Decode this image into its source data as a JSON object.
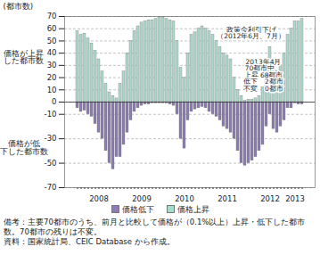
{
  "chart_data": {
    "type": "bar",
    "y_label": "(都市数)",
    "categories": [
      null,
      null,
      null,
      null,
      null,
      null,
      "2008",
      null,
      null,
      null,
      null,
      null,
      null,
      null,
      null,
      null,
      null,
      null,
      "2009",
      null,
      null,
      null,
      null,
      null,
      null,
      null,
      null,
      null,
      null,
      null,
      "2010",
      null,
      null,
      null,
      null,
      null,
      null,
      null,
      null,
      null,
      null,
      null,
      "2011",
      null,
      null,
      null,
      null,
      null,
      null,
      null,
      null,
      null,
      null,
      null,
      "2012",
      null,
      null,
      null,
      null,
      null,
      null,
      "2013",
      null,
      null
    ],
    "series": [
      {
        "name": "価格低下",
        "color": "#8c7bb8",
        "values": [
          -5,
          -8,
          -7,
          -10,
          -12,
          -18,
          -25,
          -30,
          -40,
          -50,
          -55,
          -45,
          -45,
          -35,
          -25,
          -15,
          -8,
          -5,
          -3,
          -2,
          -2,
          -1,
          -1,
          -1,
          -1,
          -1,
          -2,
          -3,
          -10,
          -30,
          -38,
          -15,
          -8,
          -6,
          -5,
          -4,
          -5,
          -8,
          -10,
          -12,
          -15,
          -20,
          -22,
          -25,
          -30,
          -40,
          -50,
          -52,
          -50,
          -48,
          -45,
          -40,
          -35,
          -20,
          -10,
          -22,
          -25,
          -20,
          -15,
          -5,
          -5,
          -1,
          -2,
          -2
        ]
      },
      {
        "name": "価格上昇",
        "color": "#a6dccd",
        "values": [
          58,
          55,
          56,
          52,
          48,
          42,
          35,
          25,
          15,
          8,
          5,
          3,
          15,
          25,
          40,
          50,
          58,
          62,
          65,
          66,
          67,
          67,
          68,
          69,
          69,
          68,
          67,
          66,
          50,
          28,
          20,
          40,
          55,
          57,
          60,
          62,
          60,
          58,
          55,
          50,
          45,
          40,
          38,
          35,
          20,
          10,
          5,
          1,
          2,
          2,
          3,
          5,
          12,
          25,
          45,
          30,
          25,
          30,
          40,
          55,
          60,
          66,
          66,
          68
        ]
      }
    ],
    "ylim": [
      -70,
      70
    ],
    "yticks": [
      70,
      60,
      50,
      40,
      30,
      20,
      10,
      0,
      -10,
      -30,
      -50,
      -70
    ],
    "grid": true,
    "legend": "bottom",
    "annotations": [
      "価格が上昇\nした都市数",
      "価格が低\n下した都市数",
      "政策金利引下げ\n（2012年6月、7月）",
      "2013年4月\n70都市中、\n上昇 68都市\n低下　2都市\n不変　0都市"
    ],
    "caption": [
      "備考：主要70都市のうち、前月と比較して価格が（0.1%以上）上昇・低下した都市数。70都市の残りは不変。",
      "資料：国家統計局、CEIC Database から作成。"
    ]
  }
}
